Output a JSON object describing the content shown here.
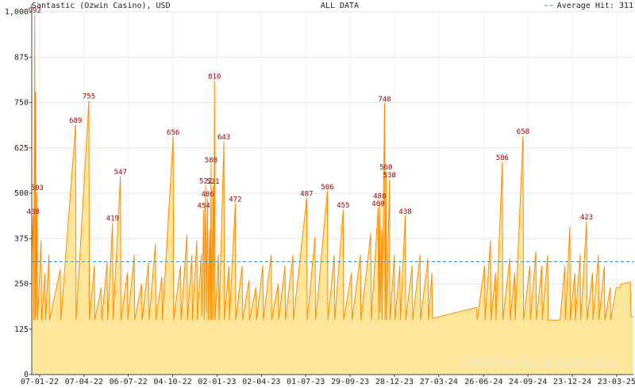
{
  "chart_data": {
    "type": "area",
    "title": "Santastic (Ozwin Casino), USD",
    "subtitle": "ALL DATA",
    "average": 311,
    "average_label": "Average Hit: 311",
    "watermark": "Online-Jackpots.biz",
    "color": "#ff8c00",
    "fill_color": "#fde699",
    "average_color": "#3399cc",
    "label_color": "#a00000",
    "grid": true,
    "legend": "top-right",
    "xlim": [
      "2021-12-22",
      "2025-04-26"
    ],
    "xticks": [
      {
        "value": "2022-01-07",
        "label": "07-01-22"
      },
      {
        "value": "2022-04-07",
        "label": "07-04-22"
      },
      {
        "value": "2022-07-06",
        "label": "06-07-22"
      },
      {
        "value": "2022-10-04",
        "label": "04-10-22"
      },
      {
        "value": "2023-01-02",
        "label": "02-01-23"
      },
      {
        "value": "2023-04-02",
        "label": "02-04-23"
      },
      {
        "value": "2023-07-01",
        "label": "01-07-23"
      },
      {
        "value": "2023-09-29",
        "label": "29-09-23"
      },
      {
        "value": "2023-12-28",
        "label": "28-12-23"
      },
      {
        "value": "2024-03-27",
        "label": "27-03-24"
      },
      {
        "value": "2024-06-26",
        "label": "26-06-24"
      },
      {
        "value": "2024-09-24",
        "label": "24-09-24"
      },
      {
        "value": "2024-12-23",
        "label": "23-12-24"
      },
      {
        "value": "2025-03-23",
        "label": "23-03-25"
      }
    ],
    "ylim": [
      0,
      1000
    ],
    "yticks": [
      0,
      125,
      250,
      375,
      500,
      625,
      750,
      875,
      {
        "value": 1000,
        "label": "1,000"
      }
    ],
    "x": [
      "2021-12-22",
      "2021-12-25",
      "2021-12-26",
      "2021-12-28",
      "2021-12-29",
      "2021-12-30",
      "2021-12-31",
      "2022-01-02",
      "2022-01-03",
      "2022-01-10",
      "2022-01-11",
      "2022-01-18",
      "2022-01-19",
      "2022-01-26",
      "2022-01-27",
      "2022-02-18",
      "2022-02-19",
      "2022-03-21",
      "2022-03-22",
      "2022-04-17",
      "2022-04-18",
      "2022-04-28",
      "2022-04-29",
      "2022-05-12",
      "2022-05-13",
      "2022-05-24",
      "2022-05-25",
      "2022-06-04",
      "2022-06-05",
      "2022-06-20",
      "2022-06-21",
      "2022-07-04",
      "2022-07-05",
      "2022-07-18",
      "2022-07-19",
      "2022-08-02",
      "2022-08-03",
      "2022-08-16",
      "2022-08-17",
      "2022-08-30",
      "2022-08-31",
      "2022-09-12",
      "2022-09-13",
      "2022-10-05",
      "2022-10-06",
      "2022-10-20",
      "2022-10-21",
      "2022-11-02",
      "2022-11-03",
      "2022-11-12",
      "2022-11-13",
      "2022-11-22",
      "2022-11-23",
      "2022-12-01",
      "2022-12-02",
      "2022-12-06",
      "2022-12-07",
      "2022-12-10",
      "2022-12-11",
      "2022-12-14",
      "2022-12-15",
      "2022-12-18",
      "2022-12-19",
      "2022-12-21",
      "2022-12-22",
      "2022-12-25",
      "2022-12-26",
      "2022-12-28",
      "2022-12-29",
      "2023-01-05",
      "2023-01-06",
      "2023-01-16",
      "2023-01-17",
      "2023-01-26",
      "2023-01-27",
      "2023-02-08",
      "2023-02-09",
      "2023-02-22",
      "2023-02-23",
      "2023-03-08",
      "2023-03-09",
      "2023-03-22",
      "2023-03-23",
      "2023-04-05",
      "2023-04-06",
      "2023-04-22",
      "2023-04-23",
      "2023-05-06",
      "2023-05-07",
      "2023-05-20",
      "2023-05-21",
      "2023-06-05",
      "2023-06-06",
      "2023-07-03",
      "2023-07-04",
      "2023-07-20",
      "2023-07-21",
      "2023-08-14",
      "2023-08-15",
      "2023-08-28",
      "2023-08-29",
      "2023-09-15",
      "2023-09-16",
      "2023-10-02",
      "2023-10-03",
      "2023-10-20",
      "2023-10-21",
      "2023-11-10",
      "2023-11-11",
      "2023-11-25",
      "2023-11-26",
      "2023-11-28",
      "2023-11-29",
      "2023-12-02",
      "2023-12-03",
      "2023-12-08",
      "2023-12-09",
      "2023-12-11",
      "2023-12-12",
      "2023-12-18",
      "2023-12-19",
      "2023-12-28",
      "2023-12-29",
      "2024-01-08",
      "2024-01-09",
      "2024-01-19",
      "2024-01-20",
      "2024-02-02",
      "2024-02-03",
      "2024-02-18",
      "2024-02-19",
      "2024-03-05",
      "2024-03-06",
      "2024-03-13",
      "2024-03-14",
      "2024-06-12",
      "2024-06-13",
      "2024-06-28",
      "2024-06-29",
      "2024-07-10",
      "2024-07-11",
      "2024-07-20",
      "2024-07-21",
      "2024-08-03",
      "2024-08-04",
      "2024-08-18",
      "2024-08-19",
      "2024-08-28",
      "2024-08-29",
      "2024-09-14",
      "2024-09-15",
      "2024-09-28",
      "2024-09-29",
      "2024-10-10",
      "2024-10-11",
      "2024-10-22",
      "2024-10-23",
      "2024-11-03",
      "2024-11-04",
      "2024-11-28",
      "2024-12-08",
      "2024-12-09",
      "2024-12-18",
      "2024-12-19",
      "2024-12-28",
      "2024-12-29",
      "2025-01-08",
      "2025-01-09",
      "2025-01-21",
      "2025-01-22",
      "2025-02-02",
      "2025-02-03",
      "2025-02-14",
      "2025-02-15",
      "2025-02-26",
      "2025-02-27",
      "2025-03-10",
      "2025-03-11",
      "2025-03-22",
      "2025-03-30",
      "2025-04-01",
      "2025-04-20",
      "2025-04-21",
      "2025-04-26"
    ],
    "values": [
      330,
      438,
      150,
      992,
      150,
      780,
      160,
      503,
      150,
      370,
      150,
      280,
      150,
      330,
      150,
      290,
      150,
      689,
      150,
      755,
      150,
      300,
      150,
      240,
      150,
      310,
      150,
      419,
      150,
      547,
      150,
      280,
      150,
      330,
      150,
      250,
      150,
      310,
      150,
      360,
      150,
      270,
      150,
      656,
      150,
      300,
      150,
      385,
      150,
      330,
      150,
      370,
      150,
      330,
      160,
      454,
      150,
      522,
      170,
      486,
      150,
      400,
      150,
      580,
      150,
      521,
      150,
      810,
      150,
      330,
      150,
      643,
      150,
      300,
      150,
      472,
      150,
      300,
      150,
      260,
      150,
      240,
      150,
      300,
      150,
      330,
      150,
      250,
      150,
      300,
      150,
      330,
      150,
      487,
      150,
      380,
      150,
      506,
      150,
      330,
      150,
      455,
      150,
      280,
      150,
      330,
      150,
      390,
      150,
      460,
      150,
      480,
      170,
      400,
      150,
      748,
      150,
      560,
      150,
      538,
      150,
      330,
      150,
      300,
      150,
      438,
      150,
      300,
      150,
      330,
      150,
      320,
      150,
      280,
      155,
      185,
      150,
      300,
      150,
      370,
      150,
      280,
      150,
      586,
      150,
      320,
      150,
      280,
      150,
      658,
      150,
      300,
      150,
      340,
      150,
      300,
      150,
      330,
      150,
      150,
      300,
      150,
      410,
      150,
      280,
      150,
      330,
      150,
      423,
      150,
      280,
      150,
      330,
      150,
      300,
      150,
      240,
      150,
      240,
      240,
      250,
      255,
      160,
      160
    ],
    "value_labels": [
      null,
      "438",
      null,
      "992",
      null,
      null,
      null,
      "503",
      null,
      null,
      null,
      null,
      null,
      null,
      null,
      null,
      null,
      "689",
      null,
      "755",
      null,
      null,
      null,
      null,
      null,
      null,
      null,
      "419",
      null,
      "547",
      null,
      null,
      null,
      null,
      null,
      null,
      null,
      null,
      null,
      null,
      null,
      null,
      null,
      "656",
      null,
      null,
      null,
      null,
      null,
      null,
      null,
      null,
      null,
      null,
      null,
      "454",
      null,
      "522",
      null,
      "486",
      null,
      null,
      null,
      "580",
      null,
      "521",
      null,
      "810",
      null,
      null,
      null,
      "643",
      null,
      null,
      null,
      "472",
      null,
      null,
      null,
      null,
      null,
      null,
      null,
      null,
      null,
      null,
      null,
      null,
      null,
      null,
      null,
      null,
      null,
      "487",
      null,
      null,
      null,
      "506",
      null,
      null,
      null,
      "455",
      null,
      null,
      null,
      null,
      null,
      null,
      null,
      "460",
      null,
      "480",
      null,
      null,
      null,
      "748",
      null,
      "560",
      null,
      "538",
      null,
      null,
      null,
      null,
      null,
      "438",
      null,
      null,
      null,
      null,
      null,
      null,
      null,
      null,
      null,
      null,
      null,
      null,
      null,
      null,
      null,
      null,
      null,
      "586",
      null,
      null,
      null,
      null,
      null,
      "658",
      null,
      null,
      null,
      null,
      null,
      null,
      null,
      null,
      null,
      null,
      null,
      null,
      null,
      null,
      null,
      null,
      null,
      null,
      "423",
      null,
      null,
      null,
      null,
      null,
      null,
      null,
      null,
      null,
      null,
      null,
      null,
      null,
      null,
      null
    ]
  }
}
